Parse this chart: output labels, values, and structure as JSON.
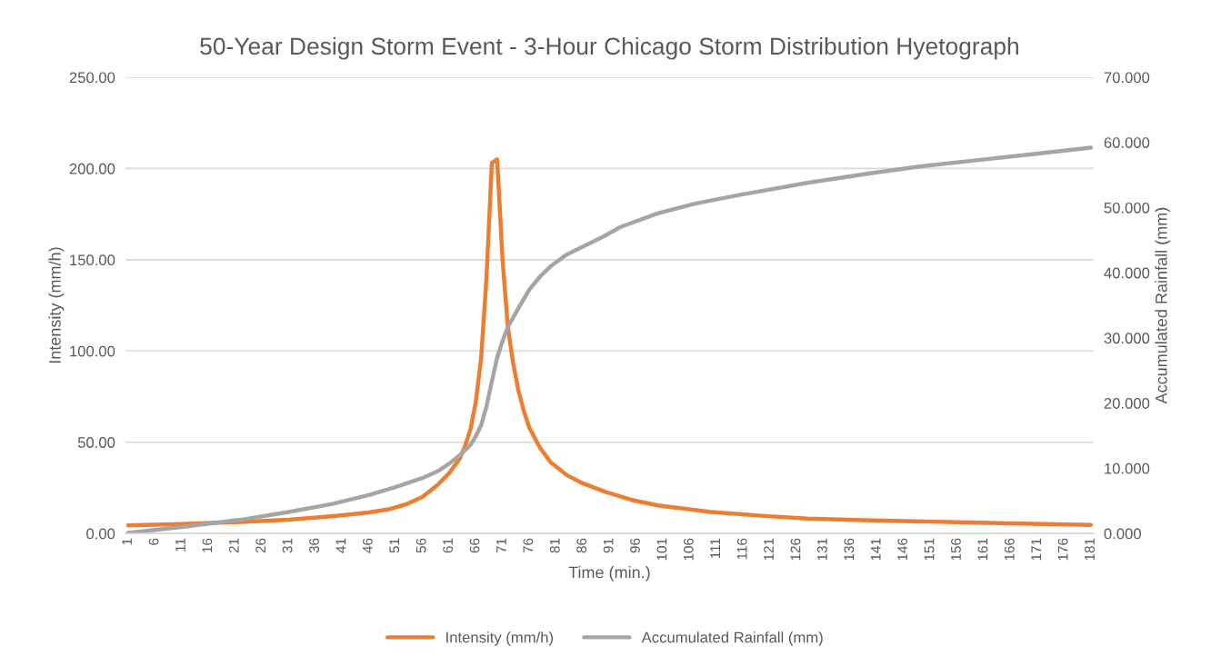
{
  "chart_data": {
    "type": "line",
    "title": "50-Year Design Storm Event - 3-Hour Chicago Storm Distribution Hyetograph",
    "xlabel": "Time (min.)",
    "ylabel": "Intensity (mm/h)",
    "y2label": "Accumulated Rainfall (mm)",
    "xlim": [
      0.5,
      181.5
    ],
    "xticks": [
      1,
      6,
      11,
      16,
      21,
      26,
      31,
      36,
      41,
      46,
      51,
      56,
      61,
      66,
      71,
      76,
      81,
      86,
      91,
      96,
      101,
      106,
      111,
      116,
      121,
      126,
      131,
      136,
      141,
      146,
      151,
      156,
      161,
      166,
      171,
      176,
      181
    ],
    "ylim": [
      0,
      250
    ],
    "yticks": [
      {
        "value": 0,
        "label": "0.00"
      },
      {
        "value": 50,
        "label": "50.00"
      },
      {
        "value": 100,
        "label": "100.00"
      },
      {
        "value": 150,
        "label": "150.00"
      },
      {
        "value": 200,
        "label": "200.00"
      },
      {
        "value": 250,
        "label": "250.00"
      }
    ],
    "y2lim": [
      0,
      70
    ],
    "y2ticks": [
      {
        "value": 0,
        "label": "0.000"
      },
      {
        "value": 10,
        "label": "10.000"
      },
      {
        "value": 20,
        "label": "20.000"
      },
      {
        "value": 30,
        "label": "30.000"
      },
      {
        "value": 40,
        "label": "40.000"
      },
      {
        "value": 50,
        "label": "50.000"
      },
      {
        "value": 60,
        "label": "60.000"
      },
      {
        "value": 70,
        "label": "70.000"
      }
    ],
    "grid": "y",
    "legend": "bottom",
    "marker": "none",
    "line_style": "solid",
    "series": [
      {
        "name": "Intensity (mm/h)",
        "color": "#ed7d31",
        "x": [
          1,
          11,
          21,
          31,
          39,
          46,
          50,
          53,
          56,
          59,
          61,
          63,
          64,
          65,
          66,
          67,
          68,
          69,
          70,
          71,
          72,
          73,
          74,
          75,
          76,
          78,
          80,
          83,
          86,
          90,
          95,
          100,
          110,
          120,
          128,
          140,
          156,
          170,
          181
        ],
        "values": [
          4.4,
          5.2,
          6.2,
          7.5,
          9.4,
          11.5,
          13.4,
          16,
          20,
          27,
          33,
          41,
          48,
          57,
          72,
          96,
          140,
          203,
          205,
          150,
          113,
          93,
          78,
          67,
          58,
          47,
          39,
          32,
          27.5,
          23,
          18.5,
          15.4,
          11.8,
          9.6,
          8.2,
          7.2,
          6.2,
          5.3,
          4.7
        ]
      },
      {
        "name": "Accumulated Rainfall (mm)",
        "color": "#a5a5a5",
        "axis": "y2",
        "x": [
          1,
          11,
          22,
          31,
          39,
          46,
          51,
          56,
          59,
          61,
          63,
          65,
          66,
          67,
          68,
          69,
          70,
          71,
          72,
          74,
          76,
          78,
          80,
          83,
          86,
          90,
          93,
          100,
          107,
          115,
          128,
          140,
          149,
          160,
          170,
          181
        ],
        "values": [
          0.1,
          1.0,
          2.1,
          3.3,
          4.5,
          5.9,
          7.1,
          8.5,
          9.6,
          10.7,
          12.0,
          13.6,
          14.9,
          16.6,
          19.5,
          23.3,
          27,
          29.5,
          31.7,
          34.6,
          37.4,
          39.4,
          41,
          42.8,
          44,
          45.6,
          47,
          49.1,
          50.6,
          51.9,
          53.8,
          55.3,
          56.3,
          57.3,
          58.2,
          59.2
        ]
      }
    ]
  }
}
